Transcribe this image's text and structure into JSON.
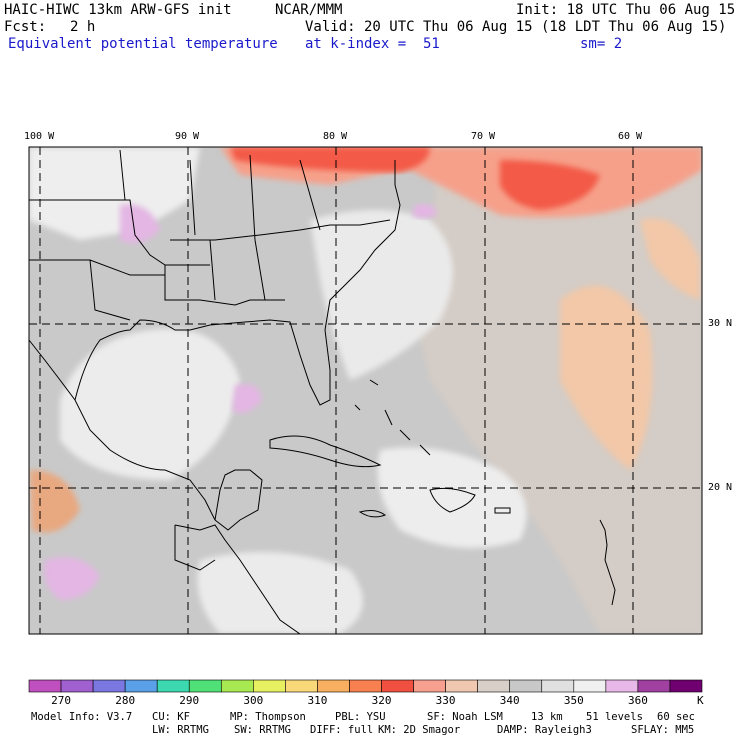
{
  "header": {
    "model": "HAIC-HIWC 13km ARW-GFS init",
    "center": "NCAR/MMM",
    "init": "Init: 18 UTC Thu 06 Aug 15",
    "fcst_label": "Fcst:",
    "fcst_value": "2 h",
    "valid": "Valid: 20 UTC Thu 06 Aug 15 (18 LDT Thu 06 Aug 15)",
    "field": "Equivalent potential temperature",
    "level": "at k-index =  51",
    "smooth": "sm= 2"
  },
  "map": {
    "lon_labels": [
      "100 W",
      "90 W",
      "80 W",
      "70 W",
      "60 W"
    ],
    "lat_labels": [
      "30 N",
      "20 N"
    ]
  },
  "colorbar": {
    "unit": "K",
    "tick_labels": [
      "270",
      "280",
      "290",
      "300",
      "310",
      "320",
      "330",
      "340",
      "350",
      "360"
    ],
    "colors": [
      "#c050c0",
      "#a060d0",
      "#7a78e0",
      "#5aa0e8",
      "#3cd8b0",
      "#50e078",
      "#a8e850",
      "#e6f060",
      "#f8d878",
      "#f8b060",
      "#f88050",
      "#f05040",
      "#f8a090",
      "#f0c8b0",
      "#d8d0c8",
      "#c8c8c8",
      "#e0e0e0",
      "#f0f0f0",
      "#e8b8e8",
      "#a040a0",
      "#700070"
    ]
  },
  "footer": {
    "line1": [
      "Model Info: V3.7",
      "CU: KF",
      "MP: Thompson",
      "PBL: YSU",
      "SF: Noah LSM",
      "13 km",
      "51 levels",
      "60 sec"
    ],
    "line2": [
      "LW: RRTMG",
      "SW: RRTMG",
      "DIFF: full",
      "KM: 2D Smagor",
      "DAMP: Rayleigh3",
      "SFLAY: MM5"
    ]
  }
}
